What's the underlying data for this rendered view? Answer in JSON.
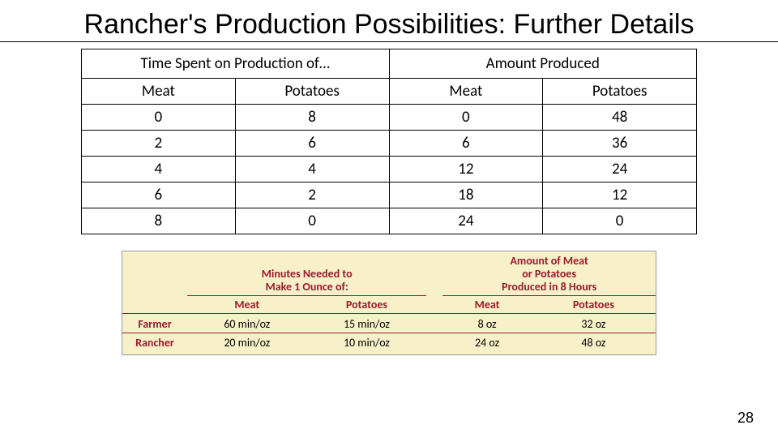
{
  "title": "Rancher's Production Possibilities: Further Details",
  "mainTable": {
    "group_headers": [
      "Time Spent on Production of…",
      "Amount Produced"
    ],
    "col_headers": [
      "Meat",
      "Potatoes",
      "Meat",
      "Potatoes"
    ],
    "rows": [
      [
        "0",
        "8",
        "0",
        "48"
      ],
      [
        "2",
        "6",
        "6",
        "36"
      ],
      [
        "4",
        "4",
        "12",
        "24"
      ],
      [
        "6",
        "2",
        "18",
        "12"
      ],
      [
        "8",
        "0",
        "24",
        "0"
      ]
    ]
  },
  "subTable": {
    "bg_color": "#f8f0c8",
    "accent_color": "#9a1b2f",
    "group_headers": [
      "Minutes Needed to\nMake 1 Ounce of:",
      "Amount of Meat\nor Potatoes\nProduced in 8 Hours"
    ],
    "col_headers": [
      "Meat",
      "Potatoes",
      "Meat",
      "Potatoes"
    ],
    "row_labels": [
      "Farmer",
      "Rancher"
    ],
    "rows": [
      [
        "60 min/oz",
        "15 min/oz",
        "8 oz",
        "32 oz"
      ],
      [
        "20 min/oz",
        "10 min/oz",
        "24 oz",
        "48 oz"
      ]
    ]
  },
  "page_number": "28"
}
